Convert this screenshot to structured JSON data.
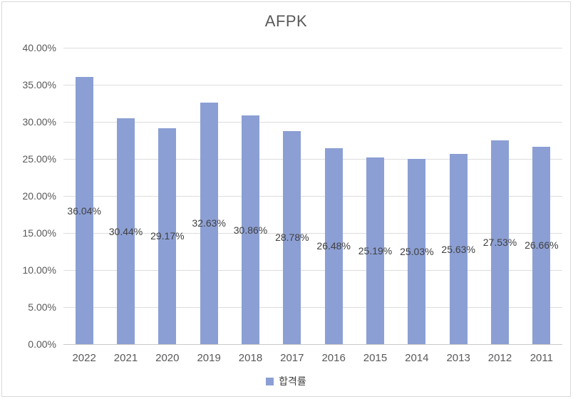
{
  "chart_data": {
    "type": "bar",
    "title": "AFPK",
    "categories": [
      "2022",
      "2021",
      "2020",
      "2019",
      "2018",
      "2017",
      "2016",
      "2015",
      "2014",
      "2013",
      "2012",
      "2011"
    ],
    "series": [
      {
        "name": "합격률",
        "values": [
          36.04,
          30.44,
          29.17,
          32.63,
          30.86,
          28.78,
          26.48,
          25.19,
          25.03,
          25.63,
          27.53,
          26.66
        ]
      }
    ],
    "data_labels": [
      "36.04%",
      "30.44%",
      "29.17%",
      "32.63%",
      "30.86%",
      "28.78%",
      "26.48%",
      "25.19%",
      "25.03%",
      "25.63%",
      "27.53%",
      "26.66%"
    ],
    "xlabel": "",
    "ylabel": "",
    "ylim": [
      0,
      40
    ],
    "ytick_step": 5,
    "ytick_labels": [
      "0.00%",
      "5.00%",
      "10.00%",
      "15.00%",
      "20.00%",
      "25.00%",
      "30.00%",
      "35.00%",
      "40.00%"
    ],
    "grid": true,
    "legend": {
      "position": "bottom",
      "entries": [
        "합격률"
      ]
    },
    "colors": {
      "bar": "#8C9FD4",
      "title_text": "#595959",
      "tick_text": "#595959",
      "data_label_text": "#404040",
      "legend_text": "#404040",
      "gridline": "#DDDDDD",
      "axis_line": "#C9C9C9",
      "frame_border": "#D9D9D9",
      "background": "#FFFFFF"
    }
  }
}
